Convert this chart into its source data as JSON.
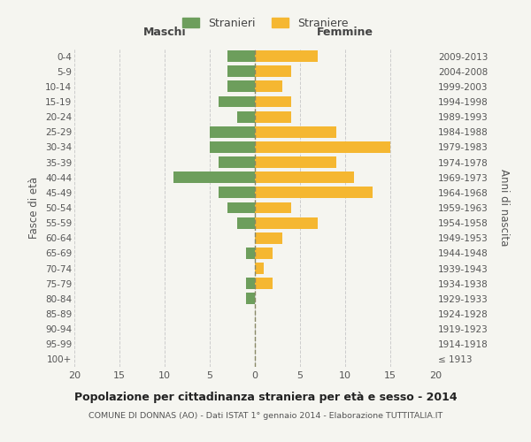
{
  "age_groups": [
    "100+",
    "95-99",
    "90-94",
    "85-89",
    "80-84",
    "75-79",
    "70-74",
    "65-69",
    "60-64",
    "55-59",
    "50-54",
    "45-49",
    "40-44",
    "35-39",
    "30-34",
    "25-29",
    "20-24",
    "15-19",
    "10-14",
    "5-9",
    "0-4"
  ],
  "birth_years": [
    "≤ 1913",
    "1914-1918",
    "1919-1923",
    "1924-1928",
    "1929-1933",
    "1934-1938",
    "1939-1943",
    "1944-1948",
    "1949-1953",
    "1954-1958",
    "1959-1963",
    "1964-1968",
    "1969-1973",
    "1974-1978",
    "1979-1983",
    "1984-1988",
    "1989-1993",
    "1994-1998",
    "1999-2003",
    "2004-2008",
    "2009-2013"
  ],
  "maschi": [
    0,
    0,
    0,
    0,
    1,
    1,
    0,
    1,
    0,
    2,
    3,
    4,
    9,
    4,
    5,
    5,
    2,
    4,
    3,
    3,
    3
  ],
  "femmine": [
    0,
    0,
    0,
    0,
    0,
    2,
    1,
    2,
    3,
    7,
    4,
    13,
    11,
    9,
    15,
    9,
    4,
    4,
    3,
    4,
    7
  ],
  "maschi_color": "#6d9e5c",
  "femmine_color": "#f5b731",
  "background_color": "#f5f5f0",
  "grid_color": "#cccccc",
  "title": "Popolazione per cittadinanza straniera per età e sesso - 2014",
  "subtitle": "COMUNE DI DONNAS (AO) - Dati ISTAT 1° gennaio 2014 - Elaborazione TUTTITALIA.IT",
  "ylabel_left": "Fasce di età",
  "ylabel_right": "Anni di nascita",
  "xlim": 20,
  "legend_maschi": "Stranieri",
  "legend_femmine": "Straniere",
  "header_maschi": "Maschi",
  "header_femmine": "Femmine"
}
